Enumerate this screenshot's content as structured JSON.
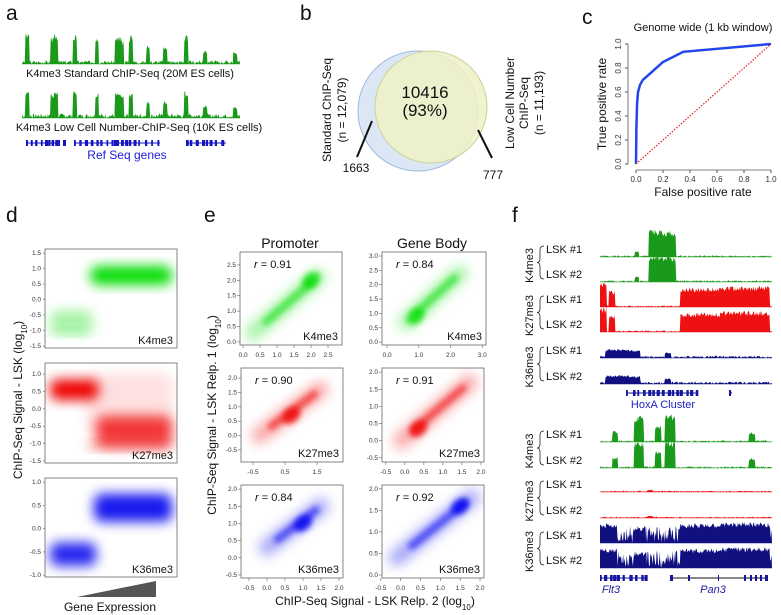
{
  "panel_labels": {
    "a": "a",
    "b": "b",
    "c": "c",
    "d": "d",
    "e": "e",
    "f": "f"
  },
  "colors": {
    "k4me3": "#1a9a1a",
    "k27me3": "#ee1111",
    "k36me3": "#101080",
    "genes": "#1515c0",
    "roc": "#2244ee",
    "diagonal": "#e03030",
    "venn_standard": "#dce7f5",
    "venn_low": "#eef1c6"
  },
  "panel_a": {
    "track1_label": "K4me3 Standard ChIP-Seq (20M ES cells)",
    "track2_label": "K4me3 Low Cell Number-ChIP-Seq (10K ES cells)",
    "genes_label": "Ref Seq genes"
  },
  "panel_b": {
    "overlap_count": "10416",
    "overlap_percent": "(93%)",
    "left_title": "Standard ChIP-Seq",
    "left_n": "(n = 12,079)",
    "left_only": "1663",
    "right_title_1": "Low Cell Number",
    "right_title_2": "ChIP-Seq",
    "right_n": "(n = 11,193)",
    "right_only": "777"
  },
  "chart_data": [
    {
      "panel": "c",
      "type": "line",
      "title": "Genome wide (1 kb window)",
      "xlabel": "False positive rate",
      "ylabel": "True positive rate",
      "xlim": [
        0,
        1
      ],
      "ylim": [
        0,
        1
      ],
      "xticks": [
        "0.0",
        "0.2",
        "0.4",
        "0.6",
        "0.8",
        "1.0"
      ],
      "yticks": [
        "0.0",
        "0.2",
        "0.4",
        "0.6",
        "0.8",
        "1.0"
      ],
      "grid": false,
      "series": [
        {
          "style": "solid",
          "color": "#2244ee",
          "x": [
            0,
            0.003,
            0.008,
            0.015,
            0.03,
            0.05,
            0.08,
            0.13,
            0.2,
            0.35,
            1.0
          ],
          "y": [
            0,
            0.3,
            0.5,
            0.6,
            0.66,
            0.7,
            0.73,
            0.78,
            0.85,
            0.935,
            1.0
          ]
        },
        {
          "style": "dotted",
          "color": "#e03030",
          "x": [
            0,
            1
          ],
          "y": [
            0,
            1
          ]
        }
      ]
    },
    {
      "panel": "d",
      "type": "heatmap",
      "ylabel_main": "ChIP-Seq Signal - LSK  (log",
      "ylabel_sub": "10",
      "ylabel_end": ")",
      "xlabel": "Gene Expression",
      "subplots": [
        {
          "mark": "K4me3",
          "ylim": [
            -1.56,
            1.63
          ],
          "yticks": [
            "1.5",
            "1.0",
            "0.5",
            "0.0",
            "-0.5",
            "-1.0",
            "-1.5"
          ],
          "color": "#00dd00"
        },
        {
          "mark": "K27me3",
          "ylim": [
            -1.56,
            1.32
          ],
          "yticks": [
            "1.0",
            "0.5",
            "0.0",
            "-0.5",
            "-1.0",
            "-1.5"
          ],
          "color": "#ee0000"
        },
        {
          "mark": "K36me3",
          "ylim": [
            -1.04,
            1.09
          ],
          "yticks": [
            "1.0",
            "0.5",
            "0.0",
            "-0.5",
            "-1.0"
          ],
          "color": "#0000ee"
        }
      ]
    },
    {
      "panel": "e",
      "type": "heatmap",
      "columns": [
        "Promoter",
        "Gene Body"
      ],
      "ylabel_main": "ChIP-Seq Signal - LSK Relp. 1 (log",
      "ylabel_sub": "10",
      "ylabel_end": ")",
      "xlabel_main": "ChIP-Seq Signal - LSK Relp. 2 (log",
      "xlabel_sub": "10",
      "xlabel_end": ")",
      "subplots": [
        {
          "mark": "K4me3",
          "r_label": "r",
          "r_value": " = 0.91",
          "color": "#00dd00",
          "xlim": [
            -0.09,
            2.91
          ],
          "ylim": [
            -0.1,
            2.92
          ],
          "xticks": [
            "0.0",
            "0.5",
            "1.0",
            "1.5",
            "2.0",
            "2.5"
          ],
          "yticks": [
            "0.0",
            "0.5",
            "1.0",
            "1.5",
            "2.0",
            "2.5"
          ],
          "ridge": [
            [
              0.3,
              0.3
            ],
            [
              2.2,
              2.1
            ]
          ],
          "peak": [
            2.0,
            2.0
          ]
        },
        {
          "mark": "K4me3",
          "r_label": "r",
          "r_value": " = 0.84",
          "color": "#00dd00",
          "xlim": [
            -0.16,
            3.12
          ],
          "ylim": [
            -0.1,
            3.14
          ],
          "xticks": [
            "0.0",
            "1.0",
            "2.0",
            "3.0"
          ],
          "yticks": [
            "0.0",
            "0.5",
            "1.0",
            "1.5",
            "2.0",
            "2.5",
            "3.0"
          ],
          "ridge": [
            [
              0.6,
              0.7
            ],
            [
              2.3,
              2.4
            ]
          ],
          "peak": [
            0.9,
            0.9
          ]
        },
        {
          "mark": "K27me3",
          "r_label": "r",
          "r_value": " = 0.90",
          "color": "#ee0000",
          "xlim": [
            -0.875,
            2.31
          ],
          "ylim": [
            -0.92,
            2.35
          ],
          "xticks": [
            "-0.5",
            "0.5",
            "1.5"
          ],
          "yticks": [
            "-0.5",
            "0.0",
            "0.5",
            "1.0",
            "1.5",
            "2.0"
          ],
          "ridge": [
            [
              -0.3,
              0.0
            ],
            [
              1.6,
              1.6
            ]
          ],
          "peak": [
            0.7,
            0.7
          ]
        },
        {
          "mark": "K27me3",
          "r_label": "r",
          "r_value": " = 0.91",
          "color": "#ee0000",
          "xlim": [
            -0.6,
            2.08
          ],
          "ylim": [
            -0.62,
            2.12
          ],
          "xticks": [
            "-0.5",
            "0.0",
            "0.5",
            "1.0",
            "1.5",
            "2.0"
          ],
          "yticks": [
            "-0.5",
            "0.0",
            "0.5",
            "1.0",
            "1.5",
            "2.0"
          ],
          "ridge": [
            [
              -0.1,
              0.0
            ],
            [
              1.7,
              1.7
            ]
          ],
          "peak": [
            0.35,
            0.35
          ]
        },
        {
          "mark": "K36me3",
          "r_label": "r",
          "r_value": " = 0.84",
          "color": "#0000ee",
          "xlim": [
            -0.72,
            2.11
          ],
          "ylim": [
            -0.59,
            2.12
          ],
          "xticks": [
            "-0.5",
            "0.0",
            "0.5",
            "1.0",
            "1.5",
            "2.0"
          ],
          "yticks": [
            "-0.5",
            "0.0",
            "0.5",
            "1.0",
            "1.5",
            "2.0"
          ],
          "ridge": [
            [
              0.0,
              0.3
            ],
            [
              1.5,
              1.5
            ]
          ],
          "peak": [
            1.0,
            1.0
          ]
        },
        {
          "mark": "K36me3",
          "r_label": "r",
          "r_value": " = 0.92",
          "color": "#0000ee",
          "xlim": [
            -0.47,
            2.1
          ],
          "ylim": [
            -0.07,
            2.09
          ],
          "xticks": [
            "-0.5",
            "0.0",
            "0.5",
            "1.0",
            "1.5",
            "2.0"
          ],
          "yticks": [
            "0.0",
            "0.5",
            "1.0",
            "1.5",
            "2.0"
          ],
          "ridge": [
            [
              -0.1,
              0.4
            ],
            [
              1.8,
              1.8
            ]
          ],
          "peak": [
            1.5,
            1.6
          ]
        }
      ]
    }
  ],
  "panel_f": {
    "groups": [
      {
        "mark": "K4me3",
        "color": "#1a9a1a",
        "rows": [
          "LSK #1",
          "LSK #2"
        ]
      },
      {
        "mark": "K27me3",
        "color": "#ee1111",
        "rows": [
          "LSK #1",
          "LSK #2"
        ]
      },
      {
        "mark": "K36me3",
        "color": "#101080",
        "rows": [
          "LSK #1",
          "LSK #2"
        ]
      },
      {
        "mark": "K4me3",
        "color": "#1a9a1a",
        "rows": [
          "LSK #1",
          "LSK #2"
        ]
      },
      {
        "mark": "K27me3",
        "color": "#ee1111",
        "rows": [
          "LSK #1",
          "LSK #2"
        ]
      },
      {
        "mark": "K36me3",
        "color": "#101080",
        "rows": [
          "LSK #1",
          "LSK #2"
        ]
      }
    ],
    "locus1_label": "HoxA Cluster",
    "gene_left": "Flt3",
    "gene_right": "Pan3"
  }
}
